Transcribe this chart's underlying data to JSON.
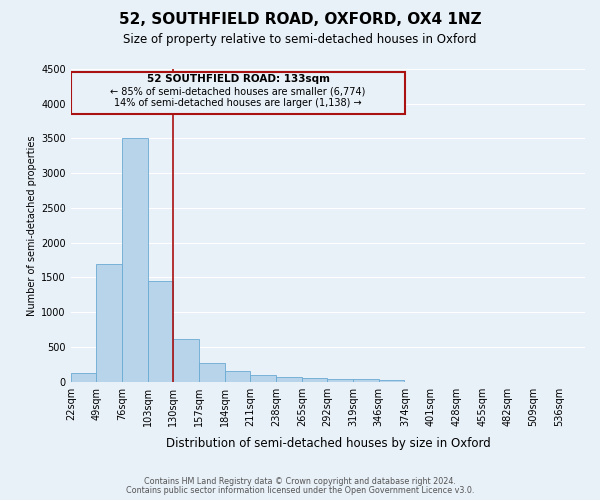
{
  "title": "52, SOUTHFIELD ROAD, OXFORD, OX4 1NZ",
  "subtitle": "Size of property relative to semi-detached houses in Oxford",
  "xlabel": "Distribution of semi-detached houses by size in Oxford",
  "ylabel": "Number of semi-detached properties",
  "bar_values": [
    130,
    1700,
    3500,
    1450,
    620,
    270,
    160,
    90,
    60,
    55,
    40,
    35,
    30,
    0,
    0,
    0,
    0,
    0,
    0,
    0
  ],
  "bin_labels": [
    "22sqm",
    "49sqm",
    "76sqm",
    "103sqm",
    "130sqm",
    "157sqm",
    "184sqm",
    "211sqm",
    "238sqm",
    "265sqm",
    "292sqm",
    "319sqm",
    "346sqm",
    "374sqm",
    "401sqm",
    "428sqm",
    "455sqm",
    "482sqm",
    "509sqm",
    "536sqm"
  ],
  "bin_edges": [
    22,
    49,
    76,
    103,
    130,
    157,
    184,
    211,
    238,
    265,
    292,
    319,
    346,
    374,
    401,
    428,
    455,
    482,
    509,
    536
  ],
  "bin_width": 27,
  "bar_color": "#b8d4ea",
  "bar_edge_color": "#6aaad4",
  "property_line_x": 130,
  "property_line_color": "#aa1111",
  "annotation_box_color": "#aa1111",
  "annotation_text_line1": "52 SOUTHFIELD ROAD: 133sqm",
  "annotation_text_line2": "← 85% of semi-detached houses are smaller (6,774)",
  "annotation_text_line3": "14% of semi-detached houses are larger (1,138) →",
  "ylim": [
    0,
    4500
  ],
  "yticks": [
    0,
    500,
    1000,
    1500,
    2000,
    2500,
    3000,
    3500,
    4000,
    4500
  ],
  "background_color": "#e8f0f8",
  "grid_color": "#ffffff",
  "footer_line1": "Contains HM Land Registry data © Crown copyright and database right 2024.",
  "footer_line2": "Contains public sector information licensed under the Open Government Licence v3.0."
}
